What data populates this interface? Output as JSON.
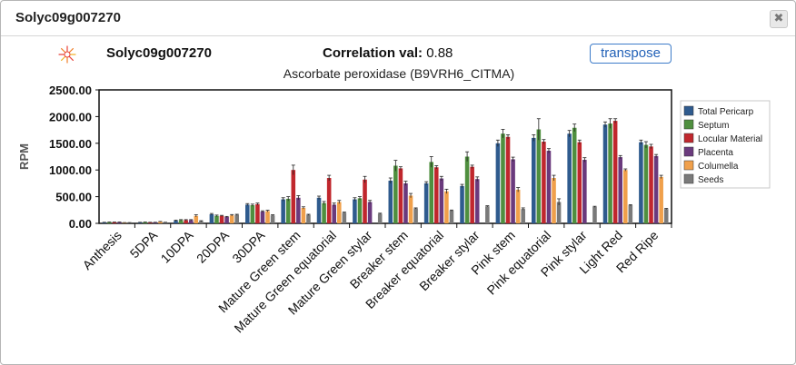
{
  "dialog": {
    "title": "Solyc09g007270",
    "close_label": "✖"
  },
  "header": {
    "gene": "Solyc09g007270",
    "correlation_label": "Correlation val:",
    "correlation_value": "0.88",
    "transpose_label": "transpose",
    "subtitle": "Ascorbate peroxidase (B9VRH6_CITMA)"
  },
  "chart_data": {
    "type": "bar",
    "ylabel": "RPM",
    "xlabel": "",
    "ylim": [
      0,
      2500
    ],
    "yticks": [
      "0.00",
      "500.00",
      "1000.00",
      "1500.00",
      "2000.00",
      "2500.00"
    ],
    "legend_position": "right",
    "categories": [
      "Anthesis",
      "5DPA",
      "10DPA",
      "20DPA",
      "30DPA",
      "Mature Green stem",
      "Mature Green equatorial",
      "Mature Green stylar",
      "Breaker stem",
      "Breaker equatorial",
      "Breaker stylar",
      "Pink stem",
      "Pink equatorial",
      "Pink stylar",
      "Light Red",
      "Red Ripe"
    ],
    "series": [
      {
        "name": "Total Pericarp",
        "color": "#2f5b8e",
        "values": [
          15,
          15,
          50,
          170,
          350,
          450,
          480,
          450,
          800,
          750,
          700,
          1500,
          1600,
          1680,
          1850,
          1520
        ],
        "errors": [
          5,
          5,
          10,
          15,
          20,
          30,
          30,
          30,
          50,
          30,
          30,
          60,
          60,
          60,
          50,
          40
        ]
      },
      {
        "name": "Septum",
        "color": "#4f8f3f",
        "values": [
          20,
          20,
          60,
          140,
          340,
          460,
          380,
          470,
          1080,
          1150,
          1250,
          1680,
          1760,
          1790,
          1870,
          1470
        ],
        "errors": [
          5,
          5,
          10,
          15,
          20,
          40,
          30,
          30,
          100,
          100,
          90,
          80,
          200,
          70,
          90,
          60
        ]
      },
      {
        "name": "Locular Material",
        "color": "#c0272d",
        "values": [
          20,
          15,
          60,
          140,
          360,
          1000,
          850,
          820,
          1030,
          1050,
          1060,
          1620,
          1530,
          1520,
          1920,
          1440
        ],
        "errors": [
          5,
          5,
          10,
          10,
          20,
          90,
          50,
          60,
          30,
          30,
          30,
          40,
          40,
          40,
          40,
          40
        ]
      },
      {
        "name": "Placenta",
        "color": "#6a3a7d",
        "values": [
          20,
          15,
          60,
          120,
          220,
          480,
          350,
          400,
          750,
          840,
          830,
          1200,
          1360,
          1190,
          1240,
          1260
        ],
        "errors": [
          5,
          5,
          10,
          10,
          15,
          40,
          30,
          30,
          40,
          40,
          40,
          40,
          40,
          40,
          30,
          30
        ]
      },
      {
        "name": "Columella",
        "color": "#f0a04b",
        "values": [
          10,
          30,
          140,
          150,
          230,
          290,
          400,
          0,
          520,
          600,
          0,
          630,
          850,
          0,
          1000,
          870
        ],
        "errors": [
          5,
          5,
          20,
          15,
          15,
          20,
          30,
          0,
          40,
          40,
          0,
          40,
          50,
          0,
          20,
          30
        ]
      },
      {
        "name": "Seeds",
        "color": "#7a7a7a",
        "values": [
          10,
          15,
          40,
          160,
          150,
          160,
          200,
          180,
          280,
          240,
          320,
          270,
          400,
          310,
          340,
          270
        ],
        "errors": [
          5,
          5,
          10,
          10,
          10,
          10,
          10,
          10,
          10,
          10,
          10,
          20,
          60,
          10,
          10,
          10
        ]
      }
    ]
  }
}
